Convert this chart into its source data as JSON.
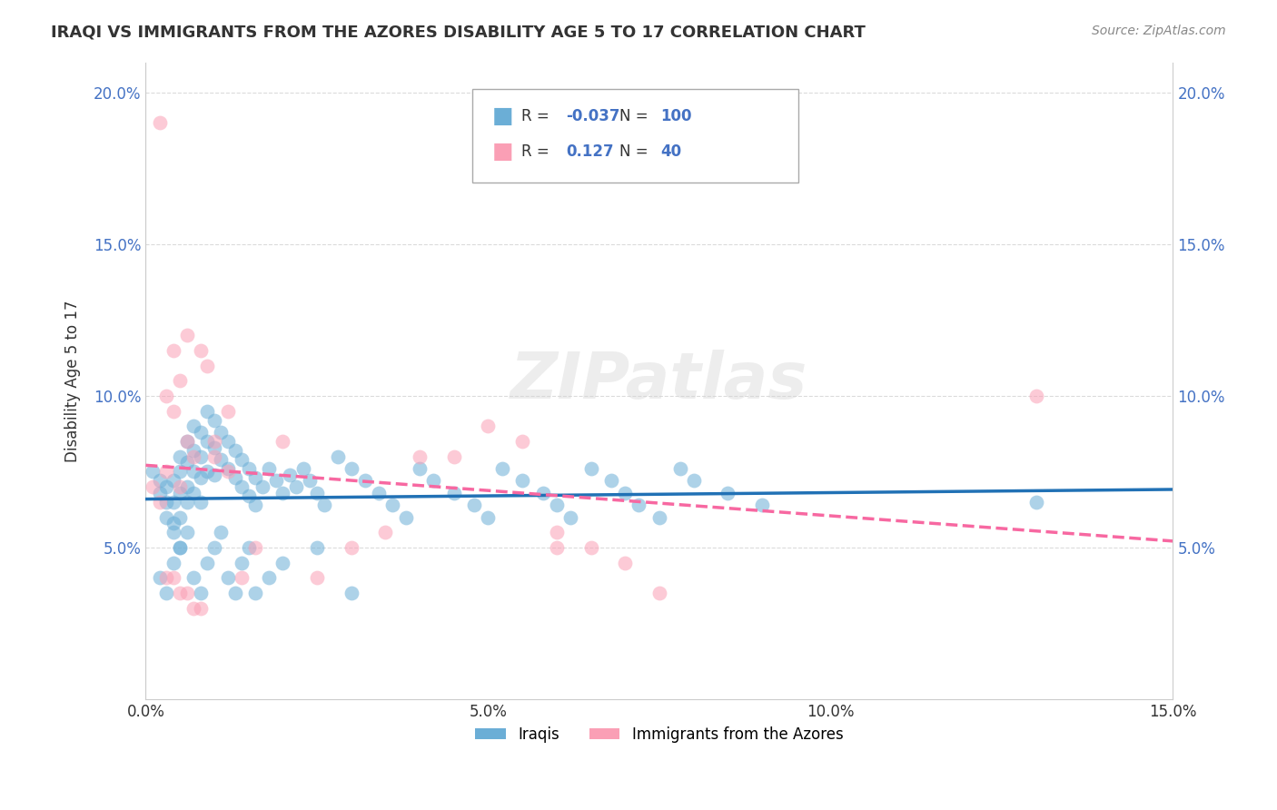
{
  "title": "IRAQI VS IMMIGRANTS FROM THE AZORES DISABILITY AGE 5 TO 17 CORRELATION CHART",
  "source": "Source: ZipAtlas.com",
  "ylabel": "Disability Age 5 to 17",
  "legend_label_1": "Iraqis",
  "legend_label_2": "Immigrants from the Azores",
  "r1": -0.037,
  "n1": 100,
  "r2": 0.127,
  "n2": 40,
  "color_blue": "#6baed6",
  "color_pink": "#fa9fb5",
  "color_blue_line": "#2171b5",
  "color_pink_line": "#f768a1",
  "xlim": [
    0.0,
    0.15
  ],
  "ylim": [
    0.0,
    0.21
  ],
  "xticks": [
    0.0,
    0.05,
    0.1,
    0.15
  ],
  "xtick_labels": [
    "0.0%",
    "5.0%",
    "10.0%",
    "15.0%"
  ],
  "yticks": [
    0.05,
    0.1,
    0.15,
    0.2
  ],
  "ytick_labels": [
    "5.0%",
    "10.0%",
    "15.0%",
    "20.0%"
  ],
  "watermark": "ZIPatlas",
  "iraqis_x": [
    0.001,
    0.002,
    0.002,
    0.003,
    0.003,
    0.003,
    0.004,
    0.004,
    0.004,
    0.004,
    0.005,
    0.005,
    0.005,
    0.005,
    0.005,
    0.006,
    0.006,
    0.006,
    0.006,
    0.007,
    0.007,
    0.007,
    0.007,
    0.008,
    0.008,
    0.008,
    0.008,
    0.009,
    0.009,
    0.009,
    0.01,
    0.01,
    0.01,
    0.011,
    0.011,
    0.012,
    0.012,
    0.013,
    0.013,
    0.014,
    0.014,
    0.015,
    0.015,
    0.016,
    0.016,
    0.017,
    0.018,
    0.019,
    0.02,
    0.021,
    0.022,
    0.023,
    0.024,
    0.025,
    0.026,
    0.028,
    0.03,
    0.032,
    0.034,
    0.036,
    0.038,
    0.04,
    0.042,
    0.045,
    0.048,
    0.05,
    0.052,
    0.055,
    0.058,
    0.06,
    0.062,
    0.065,
    0.068,
    0.07,
    0.072,
    0.075,
    0.078,
    0.08,
    0.085,
    0.09,
    0.002,
    0.003,
    0.004,
    0.005,
    0.006,
    0.007,
    0.008,
    0.009,
    0.01,
    0.011,
    0.012,
    0.013,
    0.014,
    0.015,
    0.016,
    0.018,
    0.02,
    0.025,
    0.03,
    0.13
  ],
  "iraqis_y": [
    0.075,
    0.072,
    0.068,
    0.065,
    0.07,
    0.06,
    0.058,
    0.072,
    0.065,
    0.055,
    0.08,
    0.075,
    0.068,
    0.06,
    0.05,
    0.085,
    0.078,
    0.07,
    0.065,
    0.09,
    0.082,
    0.075,
    0.068,
    0.088,
    0.08,
    0.073,
    0.065,
    0.095,
    0.085,
    0.075,
    0.092,
    0.083,
    0.074,
    0.088,
    0.079,
    0.085,
    0.076,
    0.082,
    0.073,
    0.079,
    0.07,
    0.076,
    0.067,
    0.073,
    0.064,
    0.07,
    0.076,
    0.072,
    0.068,
    0.074,
    0.07,
    0.076,
    0.072,
    0.068,
    0.064,
    0.08,
    0.076,
    0.072,
    0.068,
    0.064,
    0.06,
    0.076,
    0.072,
    0.068,
    0.064,
    0.06,
    0.076,
    0.072,
    0.068,
    0.064,
    0.06,
    0.076,
    0.072,
    0.068,
    0.064,
    0.06,
    0.076,
    0.072,
    0.068,
    0.064,
    0.04,
    0.035,
    0.045,
    0.05,
    0.055,
    0.04,
    0.035,
    0.045,
    0.05,
    0.055,
    0.04,
    0.035,
    0.045,
    0.05,
    0.035,
    0.04,
    0.045,
    0.05,
    0.035,
    0.065
  ],
  "azores_x": [
    0.001,
    0.002,
    0.002,
    0.003,
    0.003,
    0.004,
    0.004,
    0.005,
    0.005,
    0.006,
    0.006,
    0.007,
    0.008,
    0.009,
    0.01,
    0.012,
    0.014,
    0.016,
    0.02,
    0.025,
    0.03,
    0.035,
    0.04,
    0.045,
    0.05,
    0.055,
    0.06,
    0.065,
    0.07,
    0.075,
    0.003,
    0.004,
    0.005,
    0.006,
    0.007,
    0.008,
    0.01,
    0.012,
    0.06,
    0.13
  ],
  "azores_y": [
    0.07,
    0.065,
    0.19,
    0.075,
    0.1,
    0.095,
    0.115,
    0.105,
    0.07,
    0.12,
    0.085,
    0.08,
    0.115,
    0.11,
    0.08,
    0.075,
    0.04,
    0.05,
    0.085,
    0.04,
    0.05,
    0.055,
    0.08,
    0.08,
    0.09,
    0.085,
    0.055,
    0.05,
    0.045,
    0.035,
    0.04,
    0.04,
    0.035,
    0.035,
    0.03,
    0.03,
    0.085,
    0.095,
    0.05,
    0.1
  ]
}
